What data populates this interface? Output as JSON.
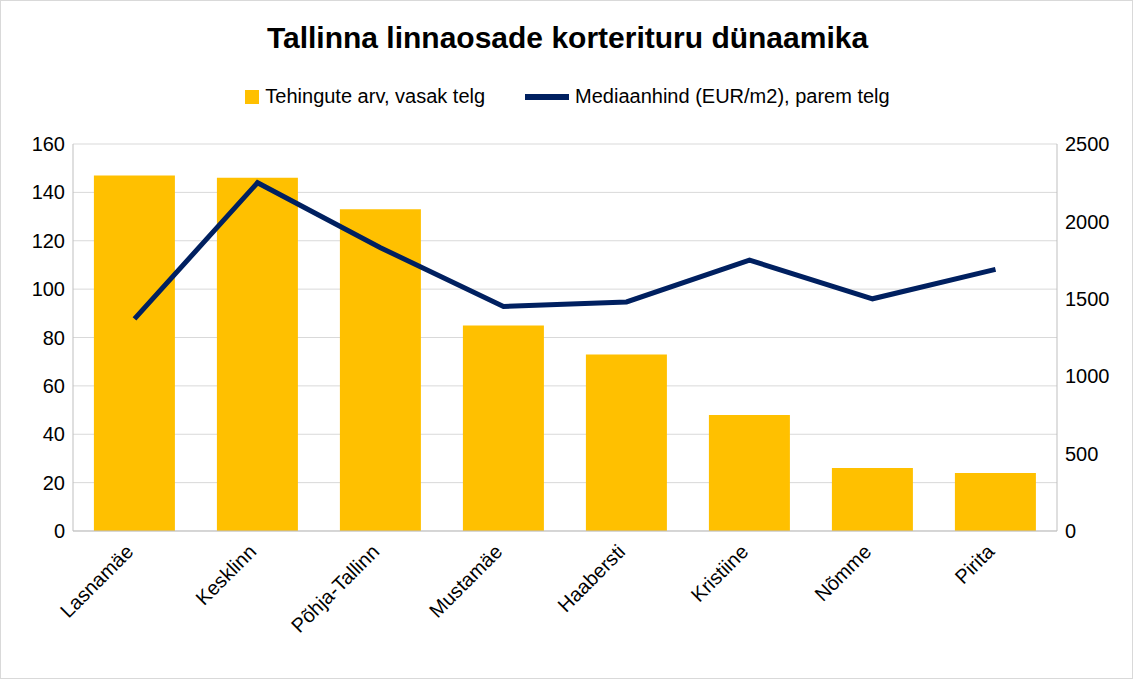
{
  "chart_data": {
    "type": "bar",
    "title": "Tallinna linnaosade korterituru dünaamika",
    "categories": [
      "Lasnamäe",
      "Kesklinn",
      "Põhja-Tallinn",
      "Mustamäe",
      "Haabersti",
      "Kristiine",
      "Nõmme",
      "Pirita"
    ],
    "series": [
      {
        "name": "Tehingute arv, vasak telg",
        "type": "bar",
        "color": "#ffc000",
        "values": [
          147,
          146,
          133,
          85,
          73,
          48,
          26,
          24
        ]
      },
      {
        "name": "Mediaanhind (EUR/m2), parem telg",
        "type": "line",
        "color": "#002060",
        "axis": "y2",
        "values": [
          1370,
          2250,
          1830,
          1450,
          1480,
          1750,
          1500,
          1690
        ]
      }
    ],
    "ylim": [
      0,
      160
    ],
    "yticks": [
      0,
      20,
      40,
      60,
      80,
      100,
      120,
      140,
      160
    ],
    "y2lim": [
      0,
      2500
    ],
    "y2ticks": [
      0,
      500,
      1000,
      1500,
      2000,
      2500
    ],
    "grid": true,
    "legend": "top"
  }
}
